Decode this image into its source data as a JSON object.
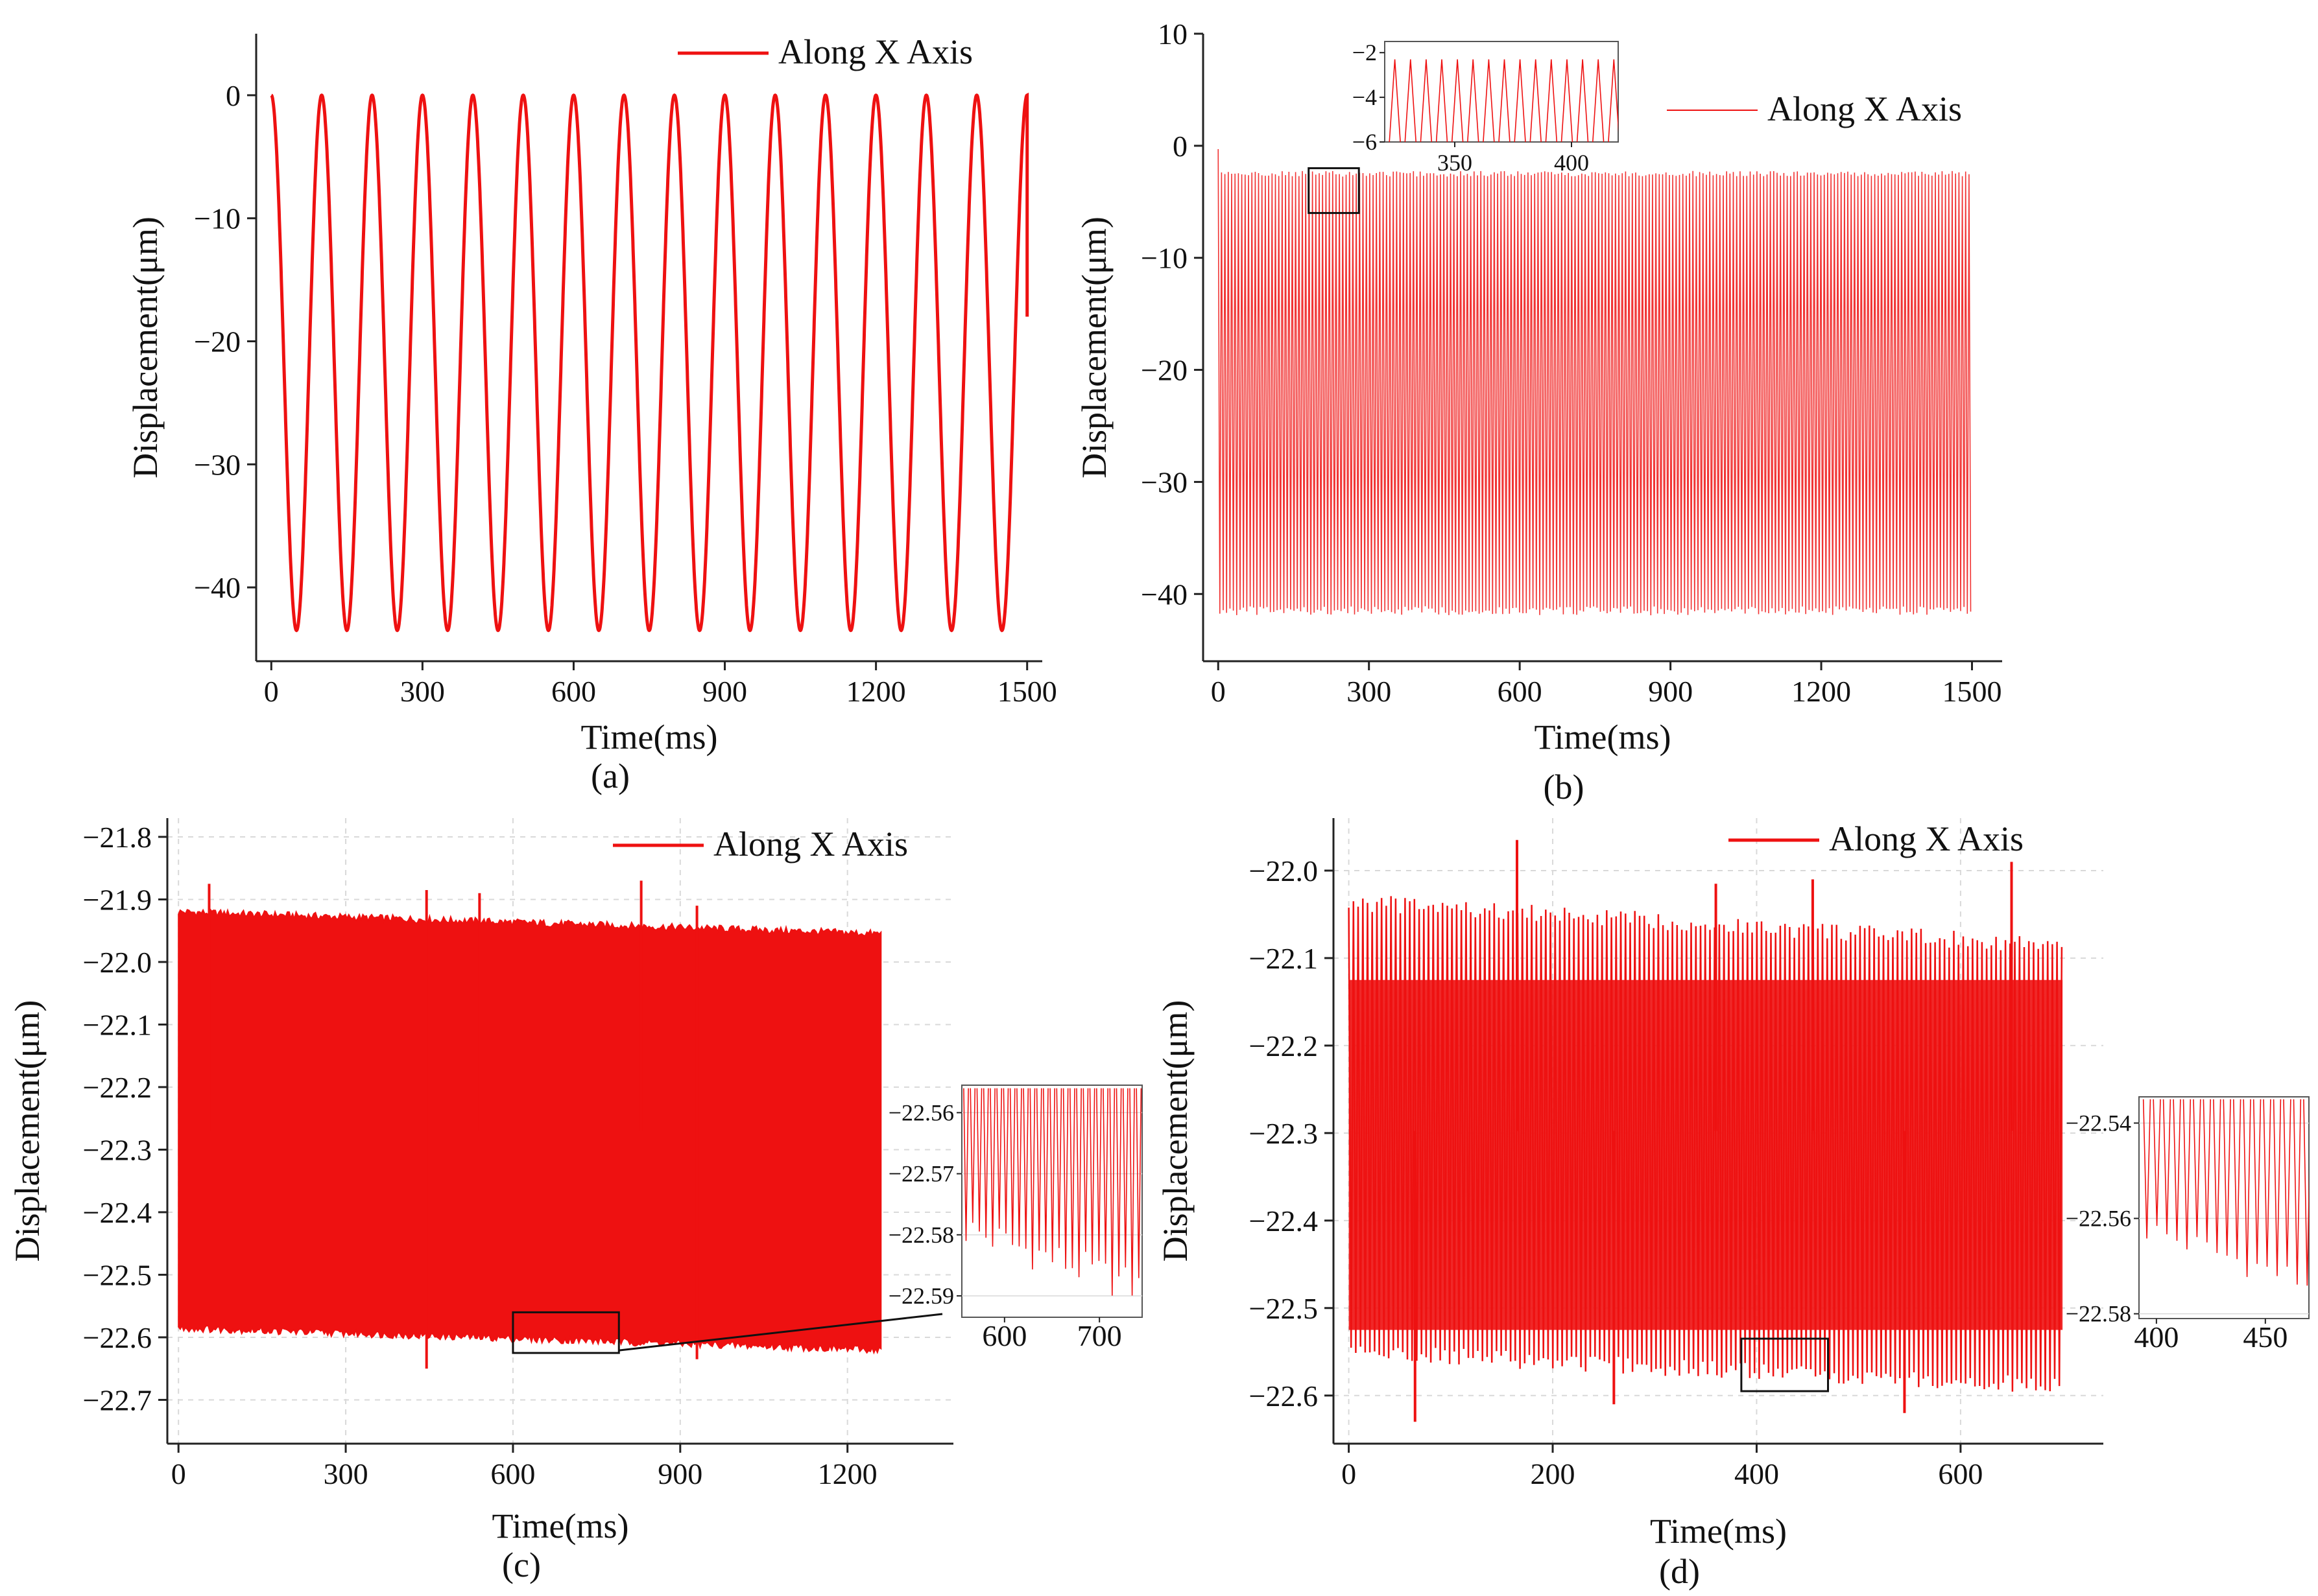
{
  "colors": {
    "series": "#ee1111",
    "axis": "#222222",
    "grid": "#d9d9d9",
    "zoom_box": "#111111"
  },
  "chart_data": [
    {
      "id": "a",
      "type": "line",
      "panel_label": "(a)",
      "title": "",
      "xlabel": "Time(ms)",
      "ylabel": "Displacement(μm)",
      "xlim": [
        -30,
        1530
      ],
      "ylim": [
        -46,
        5
      ],
      "xticks": [
        0,
        300,
        600,
        900,
        1200,
        1500
      ],
      "yticks": [
        0,
        -10,
        -20,
        -30,
        -40
      ],
      "legend": "Along X Axis",
      "legend_position": "top-right",
      "grid": false,
      "series": [
        {
          "name": "Along X Axis",
          "signal": "sinusoid",
          "t_start": 0,
          "t_end": 1500,
          "period_ms": 100,
          "max": 0,
          "min": -43.5,
          "end_value": -18
        }
      ]
    },
    {
      "id": "b",
      "type": "line",
      "panel_label": "(b)",
      "title": "",
      "xlabel": "Time(ms)",
      "ylabel": "Displacement(μm)",
      "xlim": [
        -30,
        1560
      ],
      "ylim": [
        -46,
        10
      ],
      "xticks": [
        0,
        300,
        600,
        900,
        1200,
        1500
      ],
      "yticks": [
        10,
        0,
        -10,
        -20,
        -30,
        -40
      ],
      "legend": "Along X Axis",
      "legend_position": "top-right",
      "grid": false,
      "series": [
        {
          "name": "Along X Axis",
          "signal": "dense-oscillation",
          "t_start": 0,
          "t_end": 1500,
          "period_ms": 6.7,
          "max": -2.5,
          "min": -41.5,
          "start_value": -0.3
        }
      ],
      "zoom_region": {
        "x": [
          180,
          280
        ],
        "y": [
          -6,
          -2
        ]
      },
      "inset": {
        "xlim": [
          320,
          420
        ],
        "ylim": [
          -6,
          -1.5
        ],
        "xticks": [
          350,
          400
        ],
        "yticks": [
          -2,
          -4,
          -6
        ],
        "position": "top-left",
        "signal": "spikes",
        "period_ms": 6.7,
        "base": -6,
        "peak": -2.3
      }
    },
    {
      "id": "c",
      "type": "line",
      "panel_label": "(c)",
      "title": "",
      "xlabel": "Time(ms)",
      "ylabel": "Displacement(μm)",
      "xlim": [
        -20,
        1390
      ],
      "ylim": [
        -22.77,
        -21.77
      ],
      "xticks": [
        0,
        300,
        600,
        900,
        1200
      ],
      "yticks": [
        -21.8,
        -21.9,
        -22.0,
        -22.1,
        -22.2,
        -22.3,
        -22.4,
        -22.5,
        -22.6,
        -22.7
      ],
      "legend": "Along X Axis",
      "legend_position": "top-right",
      "grid": true,
      "series": [
        {
          "name": "Along X Axis",
          "signal": "dense-band",
          "t_start": 0,
          "t_end": 1260,
          "upper_start": -21.92,
          "upper_end": -21.955,
          "lower_start": -22.585,
          "lower_end": -22.62
        }
      ],
      "spikes": [
        {
          "t": 55,
          "v": -21.875
        },
        {
          "t": 445,
          "v": -21.885
        },
        {
          "t": 540,
          "v": -21.89
        },
        {
          "t": 830,
          "v": -21.87
        },
        {
          "t": 930,
          "v": -21.91
        },
        {
          "t": 445,
          "v": -22.65
        },
        {
          "t": 930,
          "v": -22.635
        }
      ],
      "zoom_region": {
        "x": [
          600,
          790
        ],
        "y": [
          -22.625,
          -22.56
        ]
      },
      "inset": {
        "xlim": [
          555,
          745
        ],
        "ylim": [
          -22.5935,
          -22.5555
        ],
        "xticks": [
          600,
          700
        ],
        "yticks": [
          -22.56,
          -22.57,
          -22.58,
          -22.59
        ],
        "position": "right",
        "signal": "spikes",
        "period_ms": 7,
        "base": -22.556,
        "trough_start": -22.579,
        "trough_end": -22.589
      }
    },
    {
      "id": "d",
      "type": "line",
      "panel_label": "(d)",
      "title": "",
      "xlabel": "Time(ms)",
      "ylabel": "Displacement(μm)",
      "xlim": [
        -15,
        740
      ],
      "ylim": [
        -22.655,
        -21.94
      ],
      "xticks": [
        0,
        200,
        400,
        600
      ],
      "yticks": [
        -22.0,
        -22.1,
        -22.2,
        -22.3,
        -22.4,
        -22.5,
        -22.6
      ],
      "legend": "Along X Axis",
      "legend_position": "top-right",
      "grid": true,
      "series": [
        {
          "name": "Along X Axis",
          "signal": "dense-oscillation",
          "t_start": 0,
          "t_end": 700,
          "period_ms": 4.6,
          "upper_start": -22.04,
          "upper_end": -22.09,
          "lower_start": -22.55,
          "lower_end": -22.59
        }
      ],
      "spikes": [
        {
          "t": 165,
          "v": -21.965
        },
        {
          "t": 360,
          "v": -22.015
        },
        {
          "t": 455,
          "v": -22.01
        },
        {
          "t": 650,
          "v": -21.99
        },
        {
          "t": 65,
          "v": -22.63
        },
        {
          "t": 260,
          "v": -22.61
        },
        {
          "t": 545,
          "v": -22.62
        }
      ],
      "zoom_region": {
        "x": [
          385,
          470
        ],
        "y": [
          -22.595,
          -22.535
        ]
      },
      "inset": {
        "xlim": [
          392,
          470
        ],
        "ylim": [
          -22.581,
          -22.5345
        ],
        "xticks": [
          400,
          450
        ],
        "yticks": [
          -22.54,
          -22.56,
          -22.58
        ],
        "position": "right",
        "signal": "spikes",
        "period_ms": 4.6,
        "base": -22.535,
        "trough_start": -22.562,
        "trough_end": -22.574
      }
    }
  ]
}
